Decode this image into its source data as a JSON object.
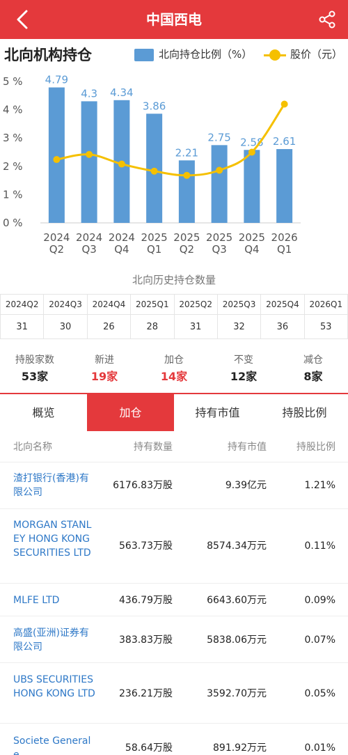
{
  "header": {
    "title": "中国西电"
  },
  "chart": {
    "title": "北向机构持仓",
    "legend_bar": "北向持仓比例（%）",
    "legend_line": "股价（元）",
    "bar_color": "#5b9bd5",
    "line_color": "#f5c000"
  },
  "chart_data": {
    "type": "bar",
    "title": "北向机构持仓",
    "categories": [
      [
        "2024",
        "Q2"
      ],
      [
        "2024",
        "Q3"
      ],
      [
        "2024",
        "Q4"
      ],
      [
        "2025",
        "Q1"
      ],
      [
        "2025",
        "Q2"
      ],
      [
        "2025",
        "Q3"
      ],
      [
        "2025",
        "Q4"
      ],
      [
        "2026",
        "Q1"
      ]
    ],
    "y_ticks": [
      "0 %",
      "1 %",
      "2 %",
      "3 %",
      "4 %",
      "5 %"
    ],
    "ylim": [
      0,
      5
    ],
    "grid": false,
    "legend_position": "top-right",
    "series": [
      {
        "name": "北向持仓比例（%）",
        "type": "bar",
        "values": [
          4.79,
          4.3,
          4.34,
          3.86,
          2.21,
          2.75,
          2.58,
          2.61
        ],
        "labels": [
          "4.79",
          "4.3",
          "4.34",
          "3.86",
          "2.21",
          "2.75",
          "2.58",
          "2.61"
        ]
      },
      {
        "name": "股价（元）",
        "type": "line",
        "values": [
          2.24,
          2.42,
          2.08,
          1.83,
          1.68,
          1.86,
          2.5,
          4.2
        ]
      }
    ]
  },
  "history": {
    "title": "北向历史持仓数量",
    "quarters": [
      "2024Q2",
      "2024Q3",
      "2024Q4",
      "2025Q1",
      "2025Q2",
      "2025Q3",
      "2025Q4",
      "2026Q1"
    ],
    "counts": [
      "31",
      "30",
      "26",
      "28",
      "31",
      "32",
      "36",
      "53"
    ]
  },
  "stats": [
    {
      "label": "持股家数",
      "value": "53家",
      "highlight": false
    },
    {
      "label": "新进",
      "value": "19家",
      "highlight": true
    },
    {
      "label": "加仓",
      "value": "14家",
      "highlight": true
    },
    {
      "label": "不变",
      "value": "12家",
      "highlight": false
    },
    {
      "label": "减仓",
      "value": "8家",
      "highlight": false
    }
  ],
  "tabs": [
    {
      "label": "概览",
      "active": false
    },
    {
      "label": "加仓",
      "active": true
    },
    {
      "label": "持有市值",
      "active": false
    },
    {
      "label": "持股比例",
      "active": false
    }
  ],
  "list": {
    "headers": [
      "北向名称",
      "持有数量",
      "持有市值",
      "持股比例"
    ],
    "rows": [
      {
        "name": "渣打银行(香港)有限公司",
        "qty": "6176.83万股",
        "value": "9.39亿元",
        "ratio": "1.21%"
      },
      {
        "name": "MORGAN STANLEY HONG KONG SECURITIES LTD",
        "qty": "563.73万股",
        "value": "8574.34万元",
        "ratio": "0.11%"
      },
      {
        "name": "MLFE LTD",
        "qty": "436.79万股",
        "value": "6643.60万元",
        "ratio": "0.09%"
      },
      {
        "name": "高盛(亚洲)证券有限公司",
        "qty": "383.83万股",
        "value": "5838.06万元",
        "ratio": "0.07%"
      },
      {
        "name": "UBS SECURITIES HONG KONG LTD",
        "qty": "236.21万股",
        "value": "3592.70万元",
        "ratio": "0.05%"
      },
      {
        "name": "Societe Generale",
        "qty": "58.64万股",
        "value": "891.92万元",
        "ratio": "0.01%"
      }
    ]
  },
  "colors": {
    "accent": "#e4393c",
    "link": "#2e78c7"
  }
}
